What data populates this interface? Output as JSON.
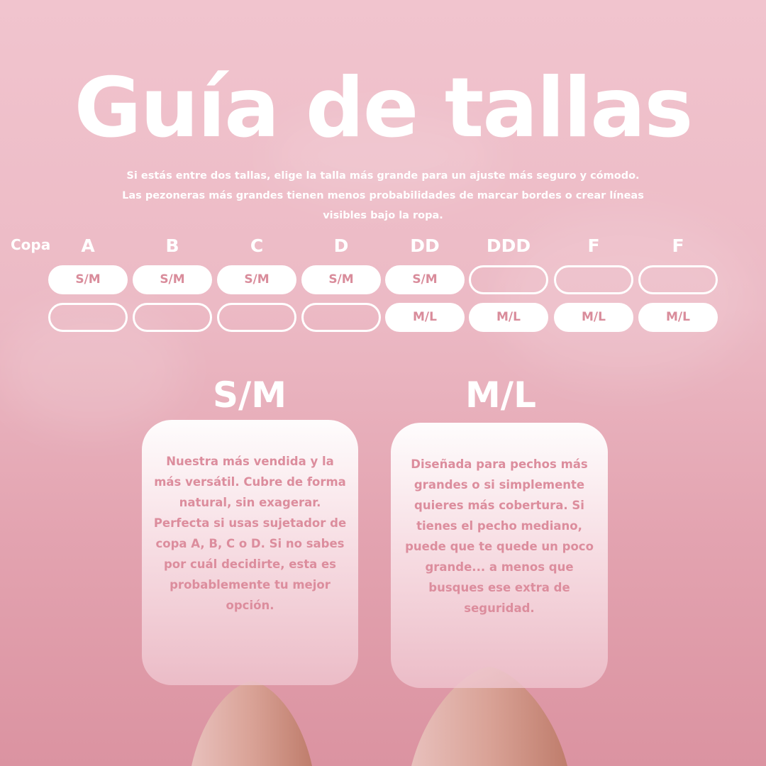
{
  "title": "Guía de tallas",
  "subtitle": [
    "Si estás entre dos tallas, elige la talla más grande para un ajuste más seguro y cómodo.",
    "Las pezoneras más grandes tienen menos probabilidades de marcar bordes o crear líneas",
    "visibles bajo la ropa."
  ],
  "size_table": {
    "row_label": "Copa",
    "columns": [
      {
        "cup": "A",
        "row1": "S/M",
        "row2": ""
      },
      {
        "cup": "B",
        "row1": "S/M",
        "row2": ""
      },
      {
        "cup": "C",
        "row1": "S/M",
        "row2": ""
      },
      {
        "cup": "D",
        "row1": "S/M",
        "row2": ""
      },
      {
        "cup": "DD",
        "row1": "S/M",
        "row2": "M/L"
      },
      {
        "cup": "DDD",
        "row1": "",
        "row2": "M/L"
      },
      {
        "cup": "F",
        "row1": "",
        "row2": "M/L"
      },
      {
        "cup": "F",
        "row1": "",
        "row2": "M/L"
      }
    ]
  },
  "sizes": [
    {
      "name": "S/M",
      "description": "Nuestra más vendida y la más versátil. Cubre de forma natural, sin exagerar. Perfecta si usas sujetador de copa A, B, C o D. Si no sabes por cuál decidirte, esta es probablemente tu mejor opción."
    },
    {
      "name": "M/L",
      "description": "Diseñada para pechos más grandes o si simplemente quieres más cobertura. Si tienes el pecho mediano, puede que te quede un poco grande... a menos que busques ese extra de seguridad."
    }
  ],
  "colors": {
    "accent_text": "#d98c9b",
    "background_top": "#f1c4ce",
    "background_bottom": "#db93a1"
  }
}
